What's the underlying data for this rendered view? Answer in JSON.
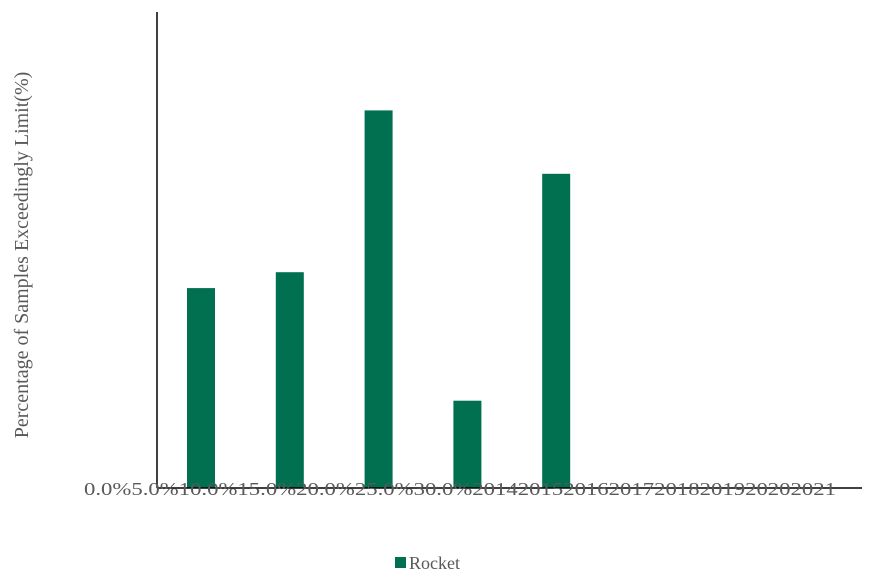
{
  "chart_data": {
    "type": "bar",
    "ylabel": "Percentage of Samples Exceedingly Limit(%)",
    "xlabel": "",
    "title": "",
    "overlapping_tick_labels": [
      "0.0%",
      "5.0%",
      "10.0%",
      "15.0%",
      "20.0%",
      "25.0%",
      "30.0%",
      "2014",
      "2015",
      "2016",
      "2017",
      "2018",
      "2019",
      "2020",
      "2021"
    ],
    "categories": [
      "2014",
      "2015",
      "2016",
      "2017",
      "2018",
      "2019",
      "2020",
      "2021"
    ],
    "series": [
      {
        "name": "Rocket",
        "color": "#007050",
        "values": [
          12.6,
          13.6,
          23.8,
          5.5,
          19.8,
          null,
          null,
          null
        ]
      }
    ],
    "ylim": [
      0,
      30
    ],
    "grid": false,
    "legend": "bottom"
  }
}
